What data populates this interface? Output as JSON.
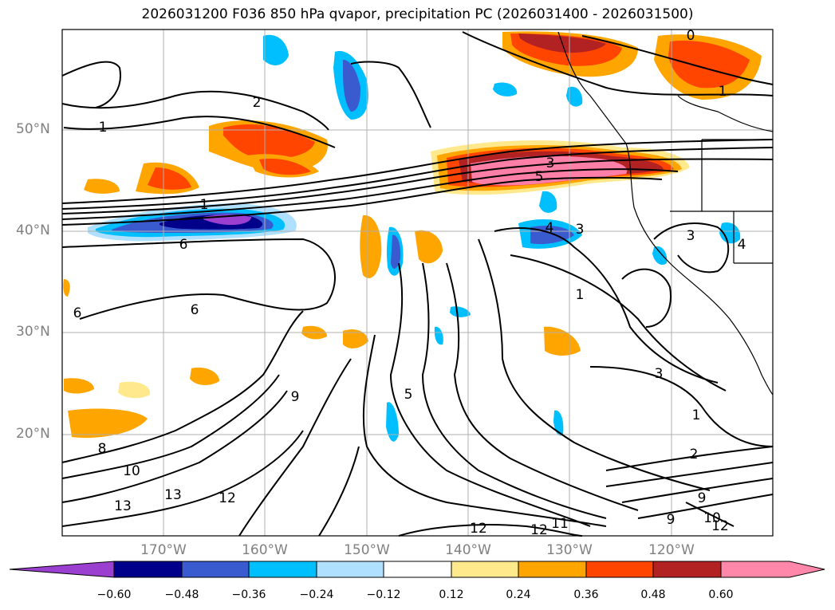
{
  "title": "2026031200 F036 850 hPa qvapor, precipitation PC (2026031400 - 2026031500)",
  "lat_ticks": [
    "50°N",
    "40°N",
    "30°N",
    "20°N"
  ],
  "lon_ticks": [
    "170°W",
    "160°W",
    "150°W",
    "140°W",
    "130°W",
    "120°W"
  ],
  "colorbar": {
    "ticks": [
      "−0.60",
      "−0.48",
      "−0.36",
      "−0.24",
      "−0.12",
      "0.12",
      "0.24",
      "0.36",
      "0.48",
      "0.60"
    ],
    "colors": [
      "#9b3fd1",
      "#00008b",
      "#3a5bd0",
      "#00bfff",
      "#b0e0ff",
      "#ffffff",
      "#ffe98c",
      "#ffa500",
      "#ff4500",
      "#b22222",
      "#ff7fa8",
      "#ff88aa"
    ]
  },
  "contour_labels": [
    "0",
    "1",
    "2",
    "1",
    "1",
    "3",
    "5",
    "4",
    "3",
    "3",
    "4",
    "6",
    "6",
    "6",
    "1",
    "3",
    "9",
    "5",
    "1",
    "8",
    "10",
    "13",
    "13",
    "12",
    "12",
    "12",
    "11",
    "2",
    "9",
    "9",
    "10",
    "12"
  ],
  "field_colors": {
    "orange": "#ffa500",
    "red": "#ff4500",
    "darkred": "#b22222",
    "pink": "#ff7fa8",
    "yellow": "#ffe98c",
    "lightblue": "#b0e0ff",
    "cyan": "#00bfff",
    "blue": "#3a5bd0",
    "navy": "#00008b",
    "purple": "#9b3fd1"
  }
}
